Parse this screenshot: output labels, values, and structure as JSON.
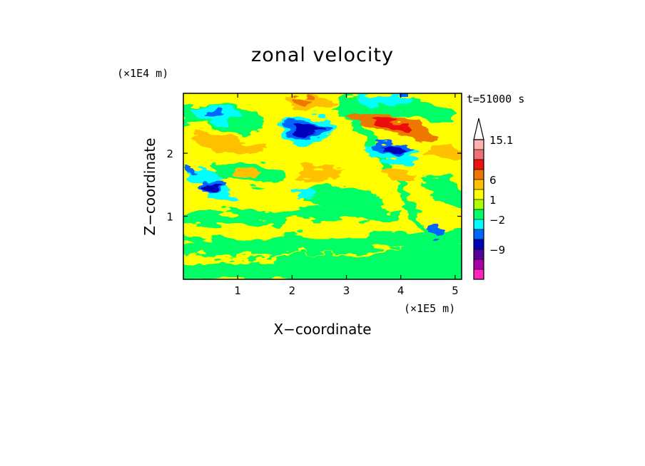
{
  "chart_data": {
    "type": "heatmap",
    "title": "zonal velocity",
    "xlabel": "X−coordinate",
    "ylabel": "Z−coordinate",
    "x_unit": "(×1E5 m)",
    "y_unit": "(×1E4 m)",
    "time_label": "t=51000 s",
    "xlim": [
      0,
      5.12
    ],
    "ylim": [
      0,
      2.95
    ],
    "x_ticks": [
      "1",
      "2",
      "3",
      "4",
      "5"
    ],
    "y_ticks": [
      "1",
      "2"
    ],
    "colorbar": {
      "extend": "max",
      "levels": [
        "15.1",
        "6",
        "1",
        "−2",
        "−9"
      ],
      "colors": [
        "#ffb0b0",
        "#ee7070",
        "#ee1111",
        "#ee7700",
        "#ffc000",
        "#ffff00",
        "#aaff00",
        "#00ff66",
        "#00ffff",
        "#0066ff",
        "#0000bb",
        "#550099",
        "#aa00aa",
        "#ff22bb"
      ]
    },
    "features": [
      {
        "x": 2.25,
        "z": 2.35,
        "value": -8
      },
      {
        "x": 3.95,
        "z": 2.1,
        "value": -7
      },
      {
        "x": 0.55,
        "z": 1.5,
        "value": -6
      },
      {
        "x": 0.55,
        "z": 2.6,
        "value": -5
      },
      {
        "x": 3.75,
        "z": 2.35,
        "value": 7
      },
      {
        "x": 2.2,
        "z": 2.85,
        "value": 4
      }
    ]
  }
}
